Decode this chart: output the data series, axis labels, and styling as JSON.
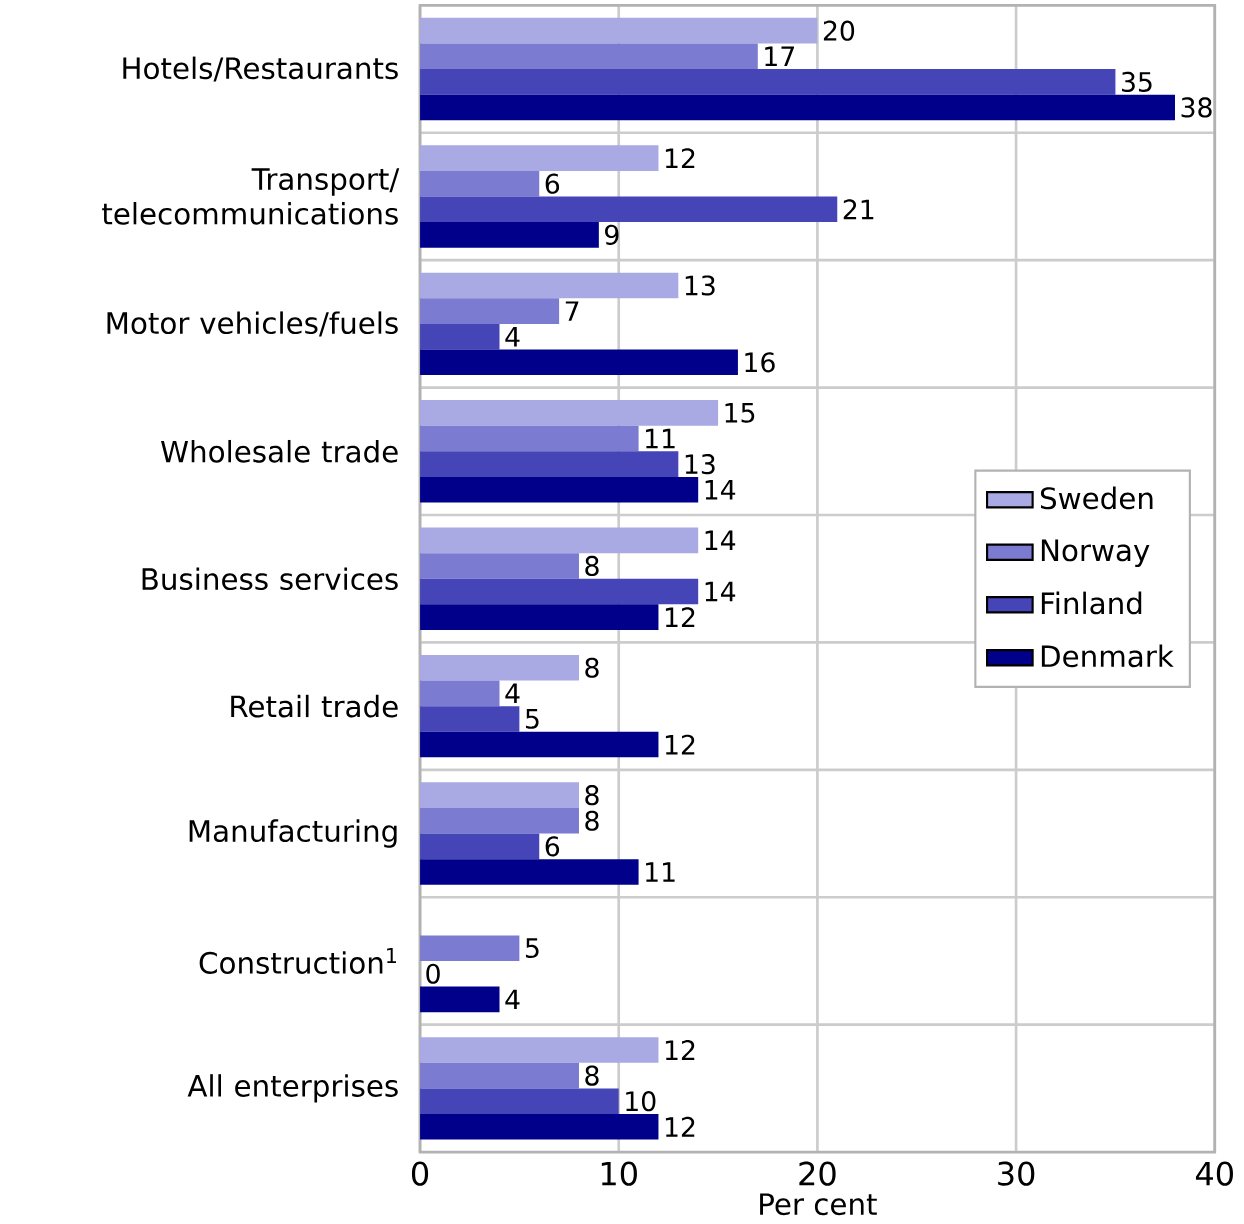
{
  "chart_data": {
    "type": "bar",
    "orientation": "horizontal",
    "xlabel": "Per cent",
    "categories": [
      "Hotels/Restaurants",
      "Transport/ telecommunications",
      "Motor vehicles/fuels",
      "Wholesale trade",
      "Business services",
      "Retail trade",
      "Manufacturing",
      "Construction$^{1}$",
      "All enterprises"
    ],
    "series": [
      {
        "name": "Sweden",
        "color": "#a9a9e3",
        "values": [
          20,
          12,
          13,
          15,
          14,
          8,
          8,
          null,
          12
        ]
      },
      {
        "name": "Norway",
        "color": "#7b7bd2",
        "values": [
          17,
          6,
          7,
          11,
          8,
          4,
          8,
          5,
          8
        ]
      },
      {
        "name": "Finland",
        "color": "#4545b8",
        "values": [
          35,
          21,
          4,
          13,
          14,
          5,
          6,
          0,
          10
        ]
      },
      {
        "name": "Denmark",
        "color": "#00008b",
        "values": [
          38,
          9,
          16,
          14,
          12,
          12,
          11,
          4,
          12
        ]
      }
    ],
    "xlim": [
      0,
      40
    ],
    "xticks": [
      0,
      10,
      20,
      30,
      40
    ],
    "grid": true,
    "legend": "right",
    "data_labels": true
  }
}
